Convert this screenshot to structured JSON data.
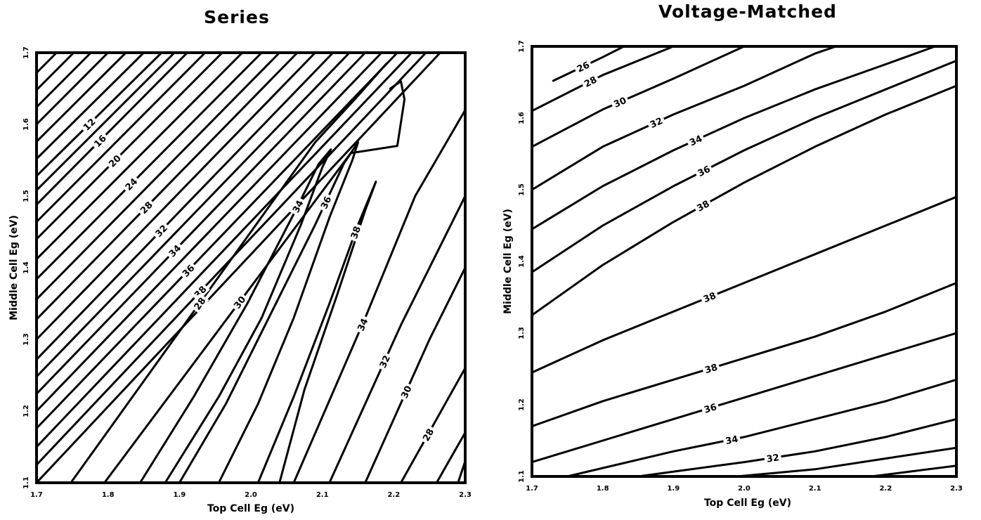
{
  "chart_data": [
    {
      "type": "contour",
      "title": "Series",
      "xlabel": "Top Cell Eg (eV)",
      "ylabel": "Middle Cell Eg (eV)",
      "xlim": [
        1.7,
        2.3
      ],
      "ylim": [
        1.1,
        1.7
      ],
      "x_ticks": [
        "1.7",
        "1.8",
        "1.9",
        "2.0",
        "2.1",
        "2.2",
        "2.3"
      ],
      "y_ticks": [
        "1.1",
        "1.2",
        "1.3",
        "1.4",
        "1.5",
        "1.6",
        "1.7"
      ],
      "contours": [
        {
          "level": "12",
          "points": [
            [
              1.7,
              1.528
            ],
            [
              1.875,
              1.7
            ]
          ]
        },
        {
          "level": "",
          "points": [
            [
              1.7,
              1.552
            ],
            [
              1.85,
              1.7
            ]
          ]
        },
        {
          "level": "",
          "points": [
            [
              1.7,
              1.576
            ],
            [
              1.825,
              1.7
            ]
          ]
        },
        {
          "level": "",
          "points": [
            [
              1.7,
              1.6
            ],
            [
              1.8,
              1.7
            ]
          ]
        },
        {
          "level": "",
          "points": [
            [
              1.7,
              1.624
            ],
            [
              1.776,
              1.7
            ]
          ]
        },
        {
          "level": "",
          "points": [
            [
              1.7,
              1.648
            ],
            [
              1.752,
              1.7
            ]
          ]
        },
        {
          "level": "",
          "points": [
            [
              1.7,
              1.672
            ],
            [
              1.728,
              1.7
            ]
          ]
        },
        {
          "level": "16",
          "points": [
            [
              1.7,
              1.488
            ],
            [
              1.911,
              1.7
            ]
          ]
        },
        {
          "level": "",
          "points": [
            [
              1.7,
              1.508
            ],
            [
              1.893,
              1.7
            ]
          ]
        },
        {
          "level": "20",
          "points": [
            [
              1.7,
              1.44
            ],
            [
              1.96,
              1.7
            ]
          ]
        },
        {
          "level": "",
          "points": [
            [
              1.7,
              1.464
            ],
            [
              1.936,
              1.7
            ]
          ]
        },
        {
          "level": "24",
          "points": [
            [
              1.7,
              1.384
            ],
            [
              2.015,
              1.7
            ]
          ]
        },
        {
          "level": "",
          "points": [
            [
              1.7,
              1.412
            ],
            [
              1.988,
              1.7
            ]
          ]
        },
        {
          "level": "28",
          "points": [
            [
              1.7,
              1.328
            ],
            [
              2.065,
              1.7
            ]
          ]
        },
        {
          "level": "",
          "points": [
            [
              1.7,
              1.356
            ],
            [
              2.04,
              1.7
            ]
          ]
        },
        {
          "level": "32",
          "points": [
            [
              1.7,
              1.272
            ],
            [
              2.115,
              1.7
            ]
          ]
        },
        {
          "level": "",
          "points": [
            [
              1.7,
              1.3
            ],
            [
              2.09,
              1.7
            ]
          ]
        },
        {
          "level": "34",
          "points": [
            [
              1.7,
              1.224
            ],
            [
              2.16,
              1.7
            ]
          ]
        },
        {
          "level": "",
          "points": [
            [
              1.7,
              1.248
            ],
            [
              2.138,
              1.7
            ]
          ]
        },
        {
          "level": "36",
          "points": [
            [
              1.7,
              1.176
            ],
            [
              2.205,
              1.7
            ]
          ]
        },
        {
          "level": "",
          "points": [
            [
              1.7,
              1.2
            ],
            [
              2.183,
              1.7
            ]
          ]
        },
        {
          "level": "38",
          "points": [
            [
              1.7,
              1.125
            ],
            [
              2.245,
              1.7
            ]
          ]
        },
        {
          "level": "",
          "points": [
            [
              1.7,
              1.15
            ],
            [
              2.225,
              1.7
            ]
          ]
        },
        {
          "level": "",
          "points": [
            [
              1.7,
              1.1
            ],
            [
              2.265,
              1.7
            ]
          ]
        },
        {
          "level": "28",
          "points": [
            [
              1.748,
              1.1
            ],
            [
              2.09,
              1.575
            ],
            [
              2.15,
              1.64
            ],
            [
              2.19,
              1.685
            ]
          ]
        },
        {
          "level": "30",
          "points": [
            [
              1.795,
              1.1
            ],
            [
              2.14,
              1.56
            ],
            [
              2.205,
              1.57
            ],
            [
              2.215,
              1.635
            ],
            [
              2.21,
              1.66
            ],
            [
              2.195,
              1.65
            ]
          ]
        },
        {
          "level": "34",
          "points": [
            [
              1.845,
              1.1
            ],
            [
              1.92,
              1.22
            ],
            [
              1.995,
              1.35
            ],
            [
              2.06,
              1.475
            ],
            [
              2.095,
              1.545
            ],
            [
              2.112,
              1.565
            ],
            [
              2.1,
              1.54
            ],
            [
              2.07,
              1.46
            ],
            [
              2.015,
              1.33
            ],
            [
              1.955,
              1.22
            ],
            [
              1.88,
              1.1
            ]
          ]
        },
        {
          "level": "36",
          "points": [
            [
              1.9,
              1.1
            ],
            [
              1.965,
              1.21
            ],
            [
              2.03,
              1.34
            ],
            [
              2.09,
              1.46
            ],
            [
              2.13,
              1.545
            ],
            [
              2.15,
              1.575
            ],
            [
              2.142,
              1.55
            ],
            [
              2.11,
              1.47
            ],
            [
              2.06,
              1.33
            ],
            [
              2.01,
              1.21
            ],
            [
              1.955,
              1.1
            ]
          ]
        },
        {
          "level": "38",
          "points": [
            [
              2.01,
              1.1
            ],
            [
              2.06,
              1.22
            ],
            [
              2.11,
              1.35
            ],
            [
              2.15,
              1.46
            ],
            [
              2.175,
              1.52
            ],
            [
              2.16,
              1.48
            ],
            [
              2.12,
              1.36
            ],
            [
              2.075,
              1.23
            ],
            [
              2.04,
              1.1
            ]
          ]
        },
        {
          "level": "34",
          "points": [
            [
              2.06,
              1.1
            ],
            [
              2.16,
              1.33
            ],
            [
              2.23,
              1.5
            ],
            [
              2.3,
              1.62
            ]
          ]
        },
        {
          "level": "32",
          "points": [
            [
              2.11,
              1.1
            ],
            [
              2.21,
              1.32
            ],
            [
              2.3,
              1.5
            ]
          ]
        },
        {
          "level": "30",
          "points": [
            [
              2.16,
              1.1
            ],
            [
              2.25,
              1.3
            ],
            [
              2.3,
              1.4
            ]
          ]
        },
        {
          "level": "28",
          "points": [
            [
              2.21,
              1.1
            ],
            [
              2.3,
              1.26
            ]
          ]
        },
        {
          "level": "",
          "points": [
            [
              2.26,
              1.1
            ],
            [
              2.3,
              1.17
            ]
          ]
        },
        {
          "level": "",
          "points": [
            [
              2.29,
              1.1
            ],
            [
              2.3,
              1.13
            ]
          ]
        }
      ]
    },
    {
      "type": "contour",
      "title": "Voltage-Matched",
      "xlabel": "Top Cell Eg (eV)",
      "ylabel": "Middle Cell Eg (eV)",
      "xlim": [
        1.7,
        2.3
      ],
      "ylim": [
        1.1,
        1.7
      ],
      "x_ticks": [
        "1.7",
        "1.8",
        "1.9",
        "2.0",
        "2.1",
        "2.2",
        "2.3"
      ],
      "y_ticks": [
        "1.1",
        "1.2",
        "1.3",
        "1.4",
        "1.5",
        "1.6",
        "1.7"
      ],
      "contours": [
        {
          "level": "26",
          "points": [
            [
              1.73,
              1.652
            ],
            [
              1.8,
              1.685
            ],
            [
              1.83,
              1.7
            ]
          ]
        },
        {
          "level": "28",
          "points": [
            [
              1.7,
              1.61
            ],
            [
              1.8,
              1.66
            ],
            [
              1.9,
              1.7
            ]
          ]
        },
        {
          "level": "30",
          "points": [
            [
              1.7,
              1.56
            ],
            [
              1.8,
              1.612
            ],
            [
              1.9,
              1.655
            ],
            [
              2.0,
              1.7
            ]
          ]
        },
        {
          "level": "32",
          "points": [
            [
              1.7,
              1.5
            ],
            [
              1.8,
              1.56
            ],
            [
              1.9,
              1.605
            ],
            [
              2.0,
              1.645
            ],
            [
              2.1,
              1.69
            ],
            [
              2.13,
              1.7
            ]
          ]
        },
        {
          "level": "34",
          "points": [
            [
              1.7,
              1.445
            ],
            [
              1.8,
              1.505
            ],
            [
              1.9,
              1.555
            ],
            [
              2.0,
              1.6
            ],
            [
              2.1,
              1.64
            ],
            [
              2.2,
              1.675
            ],
            [
              2.27,
              1.7
            ]
          ]
        },
        {
          "level": "36",
          "points": [
            [
              1.7,
              1.385
            ],
            [
              1.8,
              1.45
            ],
            [
              1.9,
              1.505
            ],
            [
              2.0,
              1.555
            ],
            [
              2.1,
              1.6
            ],
            [
              2.2,
              1.64
            ],
            [
              2.3,
              1.68
            ]
          ]
        },
        {
          "level": "38",
          "points": [
            [
              1.7,
              1.325
            ],
            [
              1.8,
              1.395
            ],
            [
              1.9,
              1.455
            ],
            [
              2.0,
              1.51
            ],
            [
              2.1,
              1.56
            ],
            [
              2.2,
              1.605
            ],
            [
              2.3,
              1.645
            ]
          ]
        },
        {
          "level": "38",
          "points": [
            [
              1.7,
              1.245
            ],
            [
              1.8,
              1.29
            ],
            [
              1.9,
              1.33
            ],
            [
              2.0,
              1.37
            ],
            [
              2.1,
              1.41
            ],
            [
              2.2,
              1.45
            ],
            [
              2.3,
              1.49
            ]
          ]
        },
        {
          "level": "38",
          "points": [
            [
              1.7,
              1.17
            ],
            [
              1.8,
              1.205
            ],
            [
              1.9,
              1.235
            ],
            [
              2.0,
              1.265
            ],
            [
              2.1,
              1.295
            ],
            [
              2.2,
              1.33
            ],
            [
              2.3,
              1.37
            ]
          ]
        },
        {
          "level": "36",
          "points": [
            [
              1.7,
              1.12
            ],
            [
              1.8,
              1.15
            ],
            [
              1.9,
              1.18
            ],
            [
              2.0,
              1.21
            ],
            [
              2.1,
              1.24
            ],
            [
              2.2,
              1.27
            ],
            [
              2.3,
              1.3
            ]
          ]
        },
        {
          "level": "34",
          "points": [
            [
              1.75,
              1.1
            ],
            [
              1.9,
              1.135
            ],
            [
              2.0,
              1.155
            ],
            [
              2.1,
              1.18
            ],
            [
              2.2,
              1.205
            ],
            [
              2.3,
              1.235
            ]
          ]
        },
        {
          "level": "32",
          "points": [
            [
              1.85,
              1.1
            ],
            [
              2.0,
              1.12
            ],
            [
              2.1,
              1.135
            ],
            [
              2.2,
              1.155
            ],
            [
              2.3,
              1.18
            ]
          ]
        },
        {
          "level": "",
          "points": [
            [
              1.99,
              1.1
            ],
            [
              2.1,
              1.11
            ],
            [
              2.2,
              1.125
            ],
            [
              2.3,
              1.14
            ]
          ]
        },
        {
          "level": "",
          "points": [
            [
              2.18,
              1.1
            ],
            [
              2.3,
              1.115
            ]
          ]
        }
      ]
    }
  ]
}
